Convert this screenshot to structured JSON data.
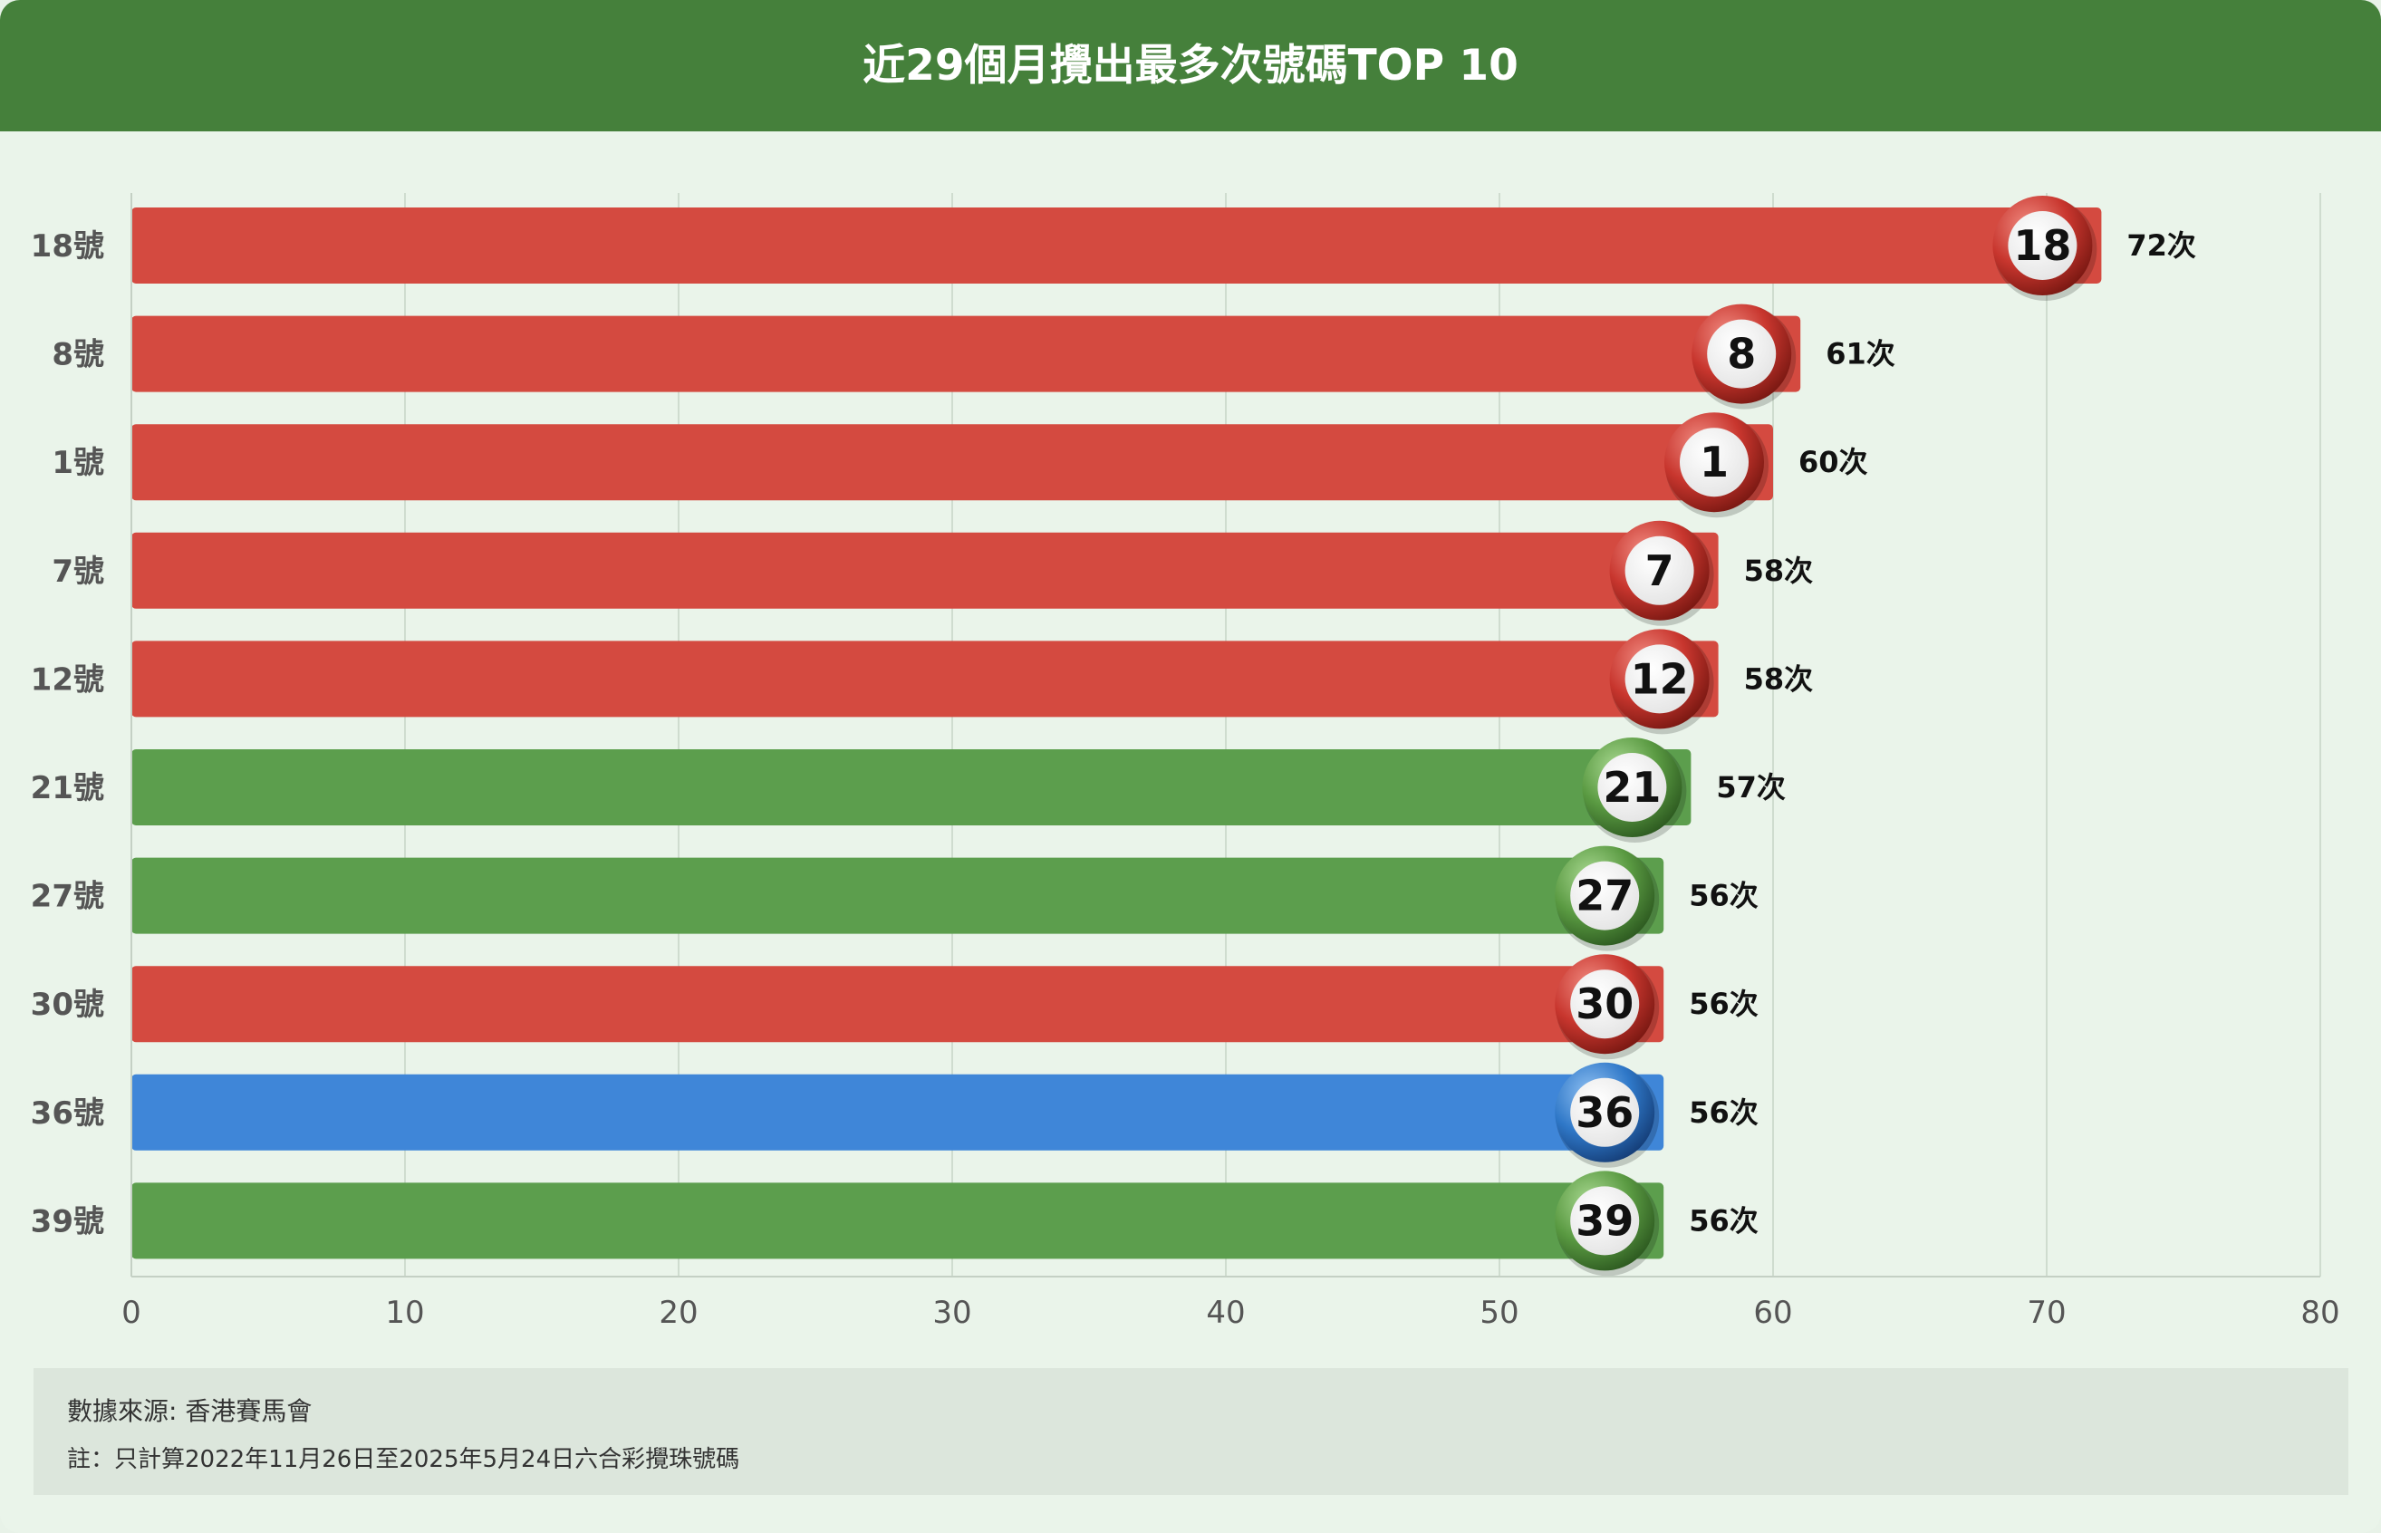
{
  "title": "近29個月攪出最多次號碼TOP 10",
  "chart_data": {
    "type": "bar",
    "orientation": "horizontal",
    "title": "近29個月攪出最多次號碼TOP 10",
    "categories": [
      "18號",
      "8號",
      "1號",
      "7號",
      "12號",
      "21號",
      "27號",
      "30號",
      "36號",
      "39號"
    ],
    "values": [
      72,
      61,
      60,
      58,
      58,
      57,
      56,
      56,
      56,
      56
    ],
    "ball_numbers": [
      "18",
      "8",
      "1",
      "7",
      "12",
      "21",
      "27",
      "30",
      "36",
      "39"
    ],
    "bar_colors": [
      "red",
      "red",
      "red",
      "red",
      "red",
      "green",
      "green",
      "red",
      "blue",
      "green"
    ],
    "value_suffix": "次",
    "xlim": [
      0,
      80
    ],
    "xticks": [
      0,
      10,
      20,
      30,
      40,
      50,
      60,
      70,
      80
    ],
    "grid": true,
    "legend": "none"
  },
  "colors": {
    "red": "#d44a40",
    "green": "#5c9e4d",
    "blue": "#3f86d8",
    "header": "#45803b",
    "background": "#eaf4ea"
  },
  "note": {
    "source": "數據來源: 香港賽馬會",
    "remark": "註：只計算2022年11月26日至2025年5月24日六合彩攪珠號碼"
  }
}
